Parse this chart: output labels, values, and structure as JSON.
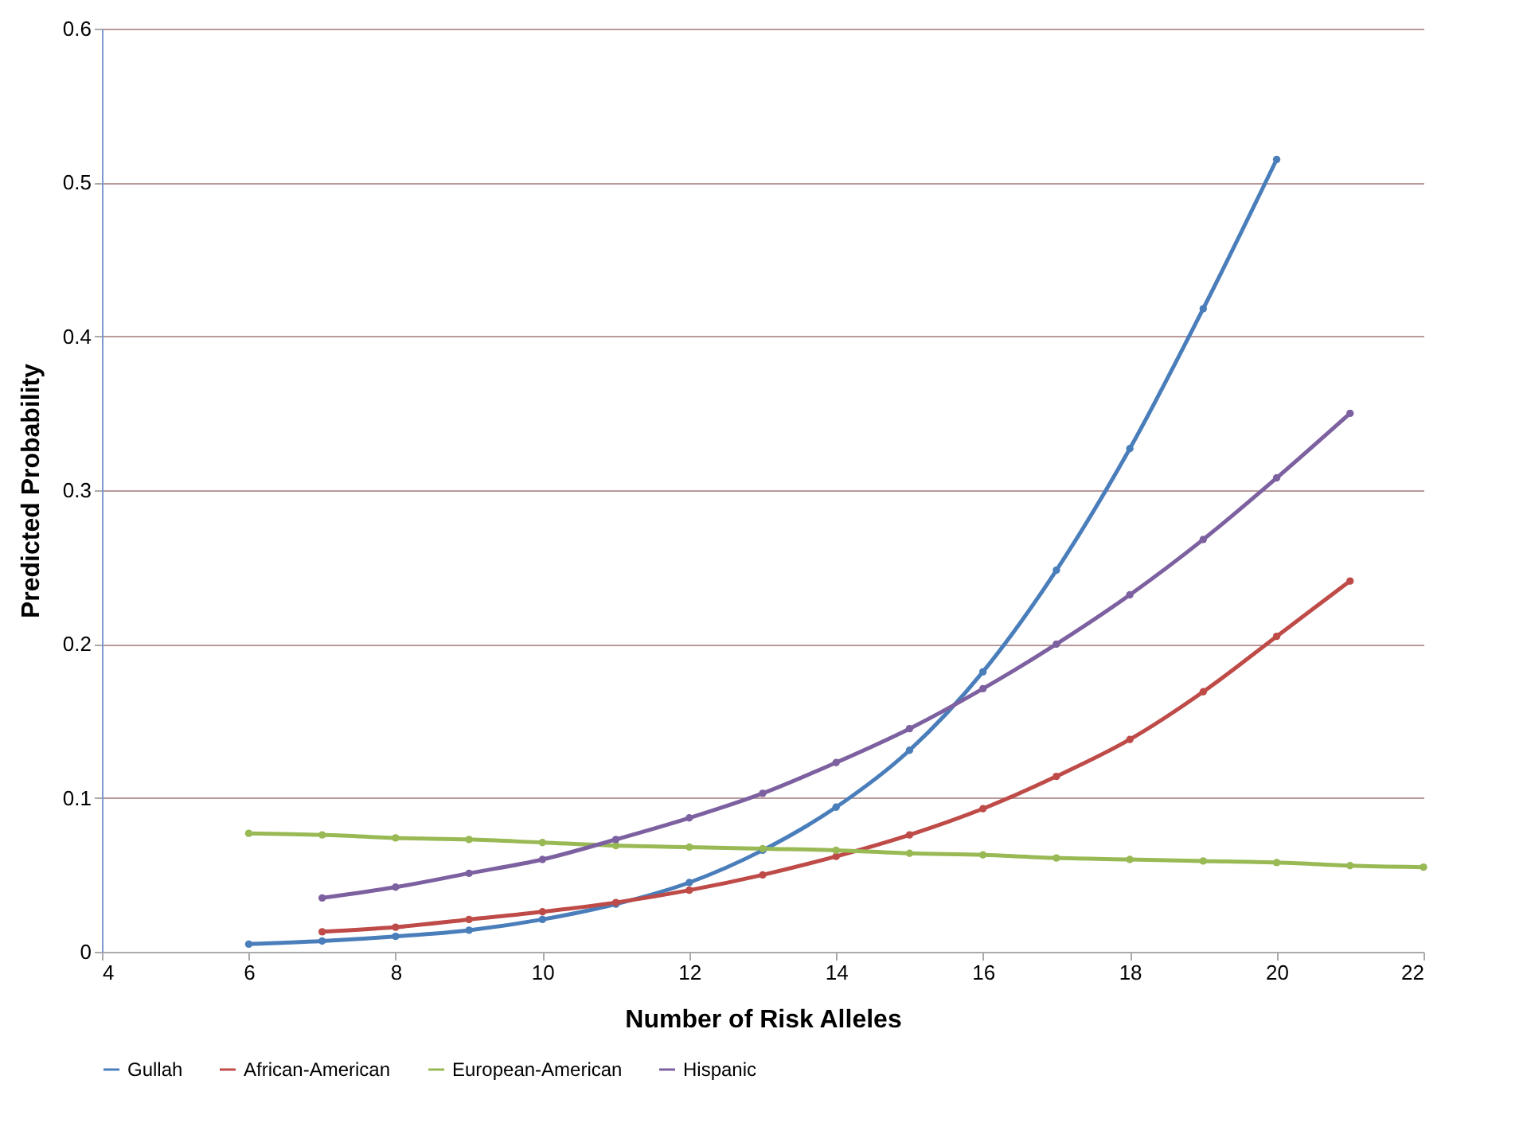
{
  "chart_data": {
    "type": "line",
    "xlabel": "Number of Risk Alleles",
    "ylabel": "Predicted Probability",
    "xlim": [
      4,
      22
    ],
    "xticks": [
      4,
      6,
      8,
      10,
      12,
      14,
      16,
      18,
      20,
      22
    ],
    "ylim": [
      0,
      0.6
    ],
    "yticks": [
      0,
      0.1,
      0.2,
      0.3,
      0.4,
      0.5,
      0.6
    ],
    "grid": "y",
    "legend": "bottom",
    "marker": "circle",
    "line_style": "solid",
    "series": [
      {
        "name": "Gullah",
        "color": "#4a7ebb",
        "x": [
          6,
          7,
          8,
          9,
          10,
          11,
          12,
          13,
          14,
          15,
          16,
          17,
          18,
          19,
          20
        ],
        "values": [
          0.005,
          0.007,
          0.01,
          0.014,
          0.021,
          0.031,
          0.045,
          0.066,
          0.094,
          0.131,
          0.182,
          0.248,
          0.327,
          0.418,
          0.515
        ]
      },
      {
        "name": "African-American",
        "color": "#be4b48",
        "x": [
          7,
          8,
          9,
          10,
          11,
          12,
          13,
          14,
          15,
          16,
          17,
          18,
          19,
          20,
          21
        ],
        "values": [
          0.013,
          0.016,
          0.021,
          0.026,
          0.032,
          0.04,
          0.05,
          0.062,
          0.076,
          0.093,
          0.114,
          0.138,
          0.169,
          0.205,
          0.241
        ]
      },
      {
        "name": "European-American",
        "color": "#98b954",
        "x": [
          6,
          7,
          8,
          9,
          10,
          11,
          12,
          13,
          14,
          15,
          16,
          17,
          18,
          19,
          20,
          21,
          22
        ],
        "values": [
          0.077,
          0.076,
          0.074,
          0.073,
          0.071,
          0.069,
          0.068,
          0.067,
          0.066,
          0.064,
          0.063,
          0.061,
          0.06,
          0.059,
          0.058,
          0.056,
          0.055
        ]
      },
      {
        "name": "Hispanic",
        "color": "#7d60a0",
        "x": [
          7,
          8,
          9,
          10,
          11,
          12,
          13,
          14,
          15,
          16,
          17,
          18,
          19,
          20,
          21
        ],
        "values": [
          0.035,
          0.042,
          0.051,
          0.06,
          0.073,
          0.087,
          0.103,
          0.123,
          0.145,
          0.171,
          0.2,
          0.232,
          0.268,
          0.308,
          0.35
        ]
      }
    ]
  }
}
